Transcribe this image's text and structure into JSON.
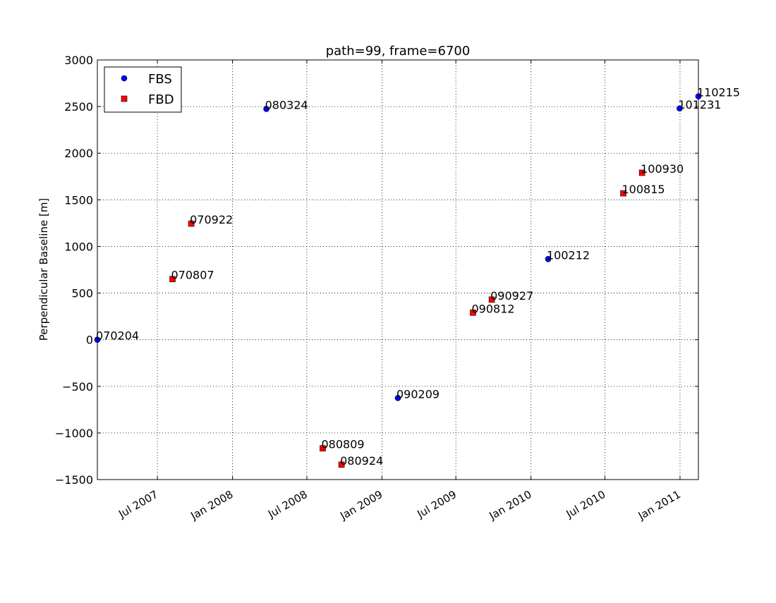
{
  "chart_data": {
    "type": "scatter",
    "title": "path=99, frame=6700",
    "xlabel": "",
    "ylabel": "Perpendicular Baseline [m]",
    "x_axis_type": "date",
    "xlim": [
      "2007-02-04",
      "2011-02-15"
    ],
    "ylim": [
      -1500,
      3000
    ],
    "grid": true,
    "legend_position": "top-left",
    "x_ticks": [
      {
        "date": "2007-07-01",
        "label": "Jul 2007"
      },
      {
        "date": "2008-01-01",
        "label": "Jan 2008"
      },
      {
        "date": "2008-07-01",
        "label": "Jul 2008"
      },
      {
        "date": "2009-01-01",
        "label": "Jan 2009"
      },
      {
        "date": "2009-07-01",
        "label": "Jul 2009"
      },
      {
        "date": "2010-01-01",
        "label": "Jan 2010"
      },
      {
        "date": "2010-07-01",
        "label": "Jul 2010"
      },
      {
        "date": "2011-01-01",
        "label": "Jan 2011"
      }
    ],
    "y_ticks": [
      3000,
      2500,
      2000,
      1500,
      1000,
      500,
      0,
      -500,
      -1000,
      -1500
    ],
    "y_tick_labels": [
      "3000",
      "2500",
      "2000",
      "1500",
      "1000",
      "500",
      "0",
      "−500",
      "−1000",
      "−1500"
    ],
    "series": [
      {
        "name": "FBS",
        "marker": "circle",
        "color": "#0000ff",
        "points": [
          {
            "date": "2007-02-04",
            "y": 0,
            "label": "070204"
          },
          {
            "date": "2008-03-24",
            "y": 2475,
            "label": "080324"
          },
          {
            "date": "2009-02-09",
            "y": -625,
            "label": "090209"
          },
          {
            "date": "2010-02-12",
            "y": 865,
            "label": "100212"
          },
          {
            "date": "2010-12-31",
            "y": 2480,
            "label": "101231"
          },
          {
            "date": "2011-02-15",
            "y": 2610,
            "label": "110215"
          }
        ]
      },
      {
        "name": "FBD",
        "marker": "square",
        "color": "#ff0000",
        "points": [
          {
            "date": "2007-08-07",
            "y": 650,
            "label": "070807"
          },
          {
            "date": "2007-09-22",
            "y": 1245,
            "label": "070922"
          },
          {
            "date": "2008-08-09",
            "y": -1165,
            "label": "080809"
          },
          {
            "date": "2008-09-24",
            "y": -1340,
            "label": "080924"
          },
          {
            "date": "2009-08-12",
            "y": 290,
            "label": "090812"
          },
          {
            "date": "2009-09-27",
            "y": 430,
            "label": "090927"
          },
          {
            "date": "2010-08-15",
            "y": 1570,
            "label": "100815"
          },
          {
            "date": "2010-09-30",
            "y": 1790,
            "label": "100930"
          }
        ]
      }
    ]
  }
}
